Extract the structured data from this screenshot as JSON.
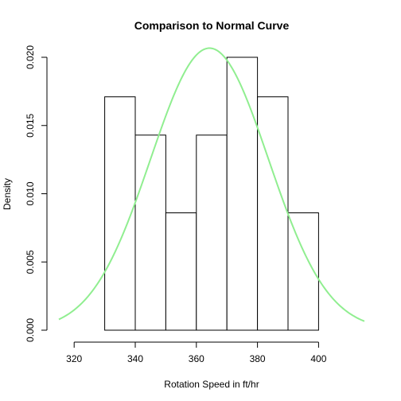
{
  "chart_data": {
    "type": "bar",
    "title": "Comparison to Normal Curve",
    "xlabel": "Rotation Speed in ft/hr",
    "ylabel": "Density",
    "xlim": [
      315,
      415
    ],
    "ylim": [
      0,
      0.02
    ],
    "x_ticks": [
      320,
      340,
      360,
      380,
      400
    ],
    "y_ticks": [
      0.0,
      0.005,
      0.01,
      0.015,
      0.02
    ],
    "y_tick_labels": [
      "0.000",
      "0.005",
      "0.010",
      "0.015",
      "0.020"
    ],
    "grid": false,
    "bins": [
      {
        "start": 330,
        "end": 340,
        "density": 0.0171
      },
      {
        "start": 340,
        "end": 350,
        "density": 0.0143
      },
      {
        "start": 350,
        "end": 360,
        "density": 0.0086
      },
      {
        "start": 360,
        "end": 370,
        "density": 0.0143
      },
      {
        "start": 370,
        "end": 380,
        "density": 0.02
      },
      {
        "start": 380,
        "end": 390,
        "density": 0.0171
      },
      {
        "start": 390,
        "end": 400,
        "density": 0.0086
      }
    ],
    "normal_curve": {
      "mean": 364.3,
      "sd": 19.3,
      "x_range": [
        315,
        415
      ],
      "color": "#90EE90"
    }
  }
}
